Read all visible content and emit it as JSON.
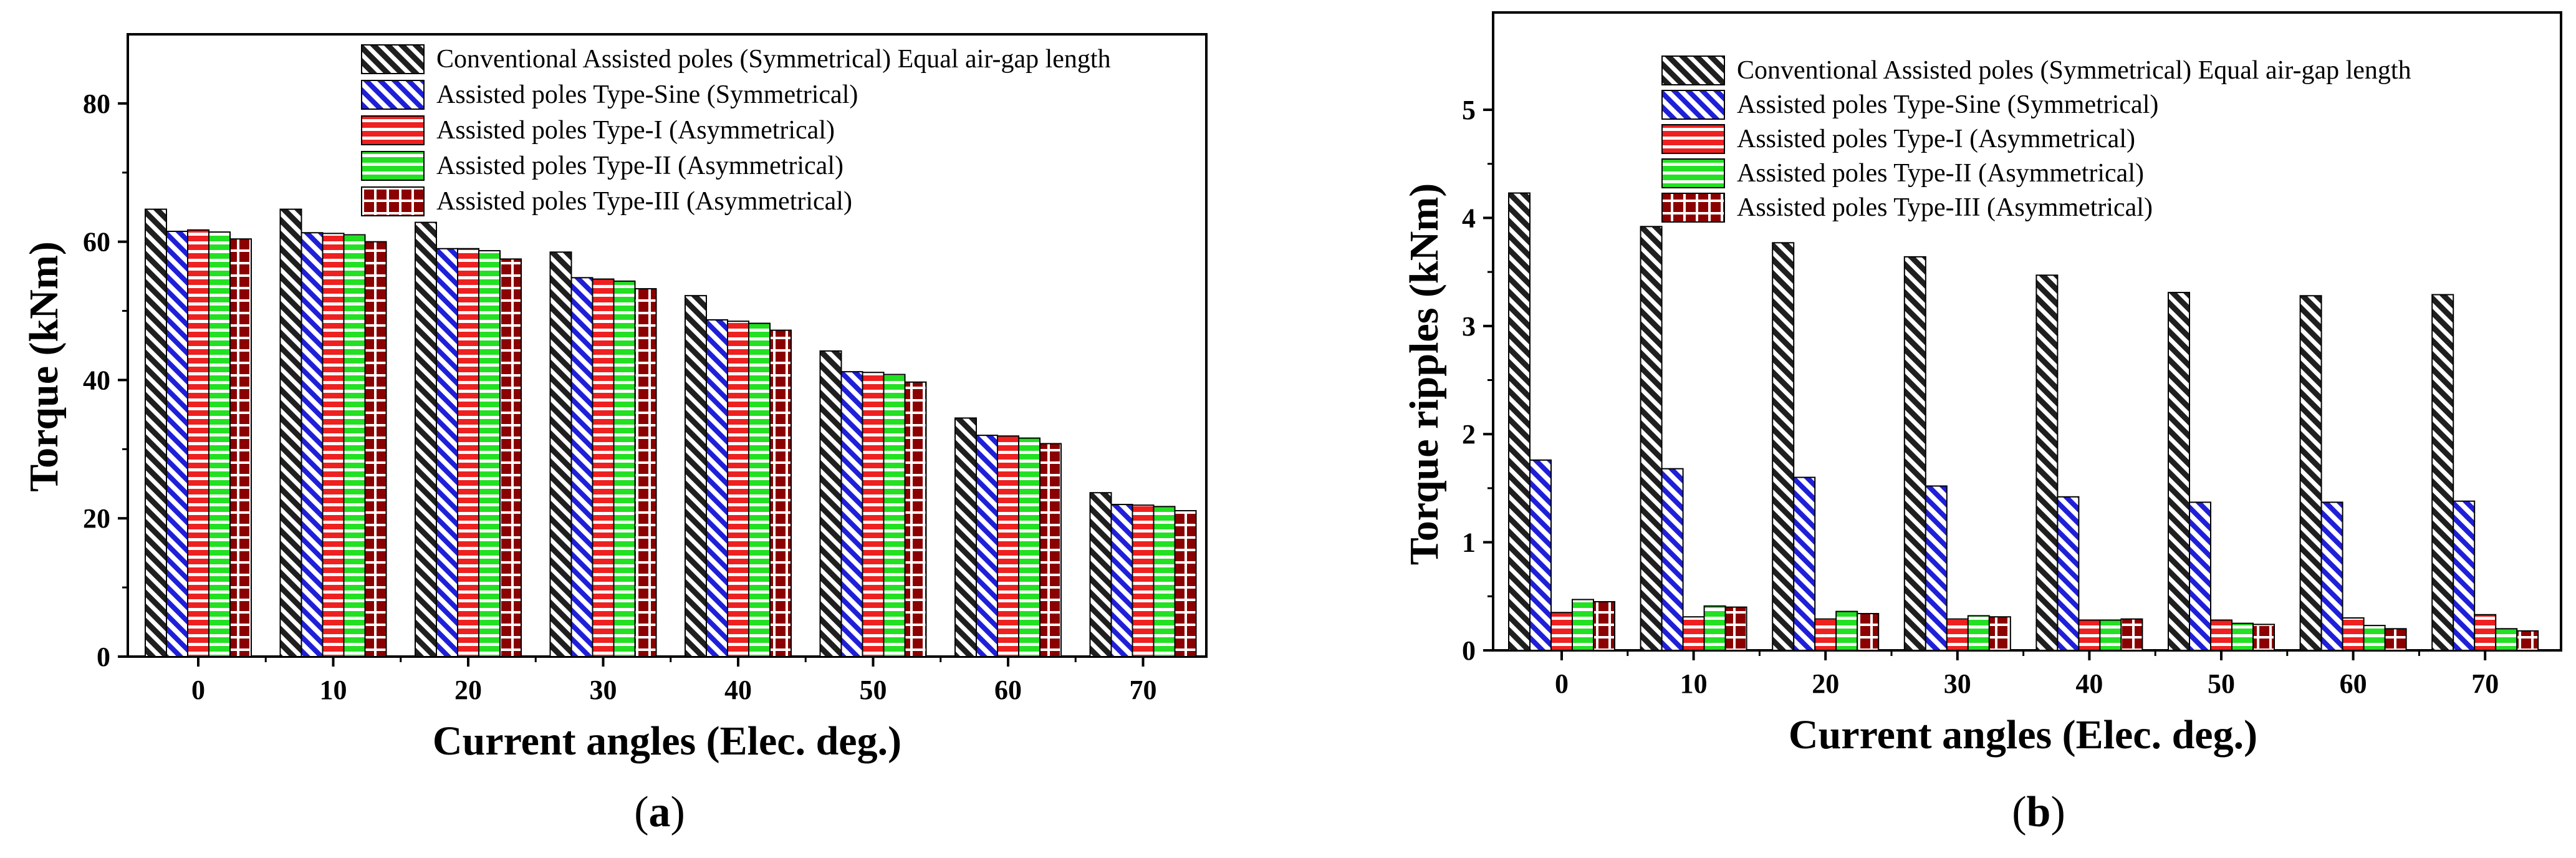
{
  "chart_data": [
    {
      "type": "bar",
      "panel_label": "a",
      "title": "",
      "xlabel": "Current angles (Elec. deg.)",
      "ylabel": "Torque (kNm)",
      "categories": [
        "0",
        "10",
        "20",
        "30",
        "40",
        "50",
        "60",
        "70"
      ],
      "ylim": [
        0,
        90
      ],
      "yticks": [
        0,
        20,
        40,
        60,
        80
      ],
      "legend_position": "top-right",
      "series": [
        {
          "name": "Conventional Assisted poles (Symmetrical) Equal air-gap length",
          "values": [
            64.7,
            64.7,
            62.8,
            58.5,
            52.2,
            44.2,
            34.5,
            23.7
          ]
        },
        {
          "name": "Assisted poles Type-Sine (Symmetrical)",
          "values": [
            61.5,
            61.3,
            59.0,
            54.8,
            48.7,
            41.2,
            32.0,
            22.0
          ]
        },
        {
          "name": "Assisted poles Type-I (Asymmetrical)",
          "values": [
            61.7,
            61.2,
            59.0,
            54.6,
            48.5,
            41.1,
            31.9,
            21.9
          ]
        },
        {
          "name": "Assisted poles Type-II (Asymmetrical)",
          "values": [
            61.4,
            61.0,
            58.7,
            54.3,
            48.2,
            40.8,
            31.6,
            21.7
          ]
        },
        {
          "name": "Assisted poles Type-III (Asymmetrical)",
          "values": [
            60.4,
            60.0,
            57.5,
            53.2,
            47.2,
            39.7,
            30.8,
            21.1
          ]
        }
      ]
    },
    {
      "type": "bar",
      "panel_label": "b",
      "title": "",
      "xlabel": "Current angles (Elec. deg.)",
      "ylabel": "Torque ripples (kNm)",
      "categories": [
        "0",
        "10",
        "20",
        "30",
        "40",
        "50",
        "60",
        "70"
      ],
      "ylim": [
        0,
        5.9
      ],
      "yticks": [
        0,
        1,
        2,
        3,
        4,
        5
      ],
      "legend_position": "top-right",
      "series": [
        {
          "name": "Conventional Assisted poles (Symmetrical) Equal air-gap length",
          "values": [
            4.23,
            3.92,
            3.77,
            3.64,
            3.47,
            3.31,
            3.28,
            3.29
          ]
        },
        {
          "name": "Assisted poles Type-Sine (Symmetrical)",
          "values": [
            1.76,
            1.68,
            1.6,
            1.52,
            1.42,
            1.37,
            1.37,
            1.38
          ]
        },
        {
          "name": "Assisted poles Type-I (Asymmetrical)",
          "values": [
            0.35,
            0.31,
            0.29,
            0.29,
            0.28,
            0.28,
            0.3,
            0.33
          ]
        },
        {
          "name": "Assisted poles Type-II (Asymmetrical)",
          "values": [
            0.47,
            0.41,
            0.36,
            0.32,
            0.28,
            0.25,
            0.23,
            0.2
          ]
        },
        {
          "name": "Assisted poles Type-III (Asymmetrical)",
          "values": [
            0.45,
            0.4,
            0.34,
            0.31,
            0.29,
            0.24,
            0.2,
            0.18
          ]
        }
      ]
    }
  ],
  "styles": {
    "series_colors": [
      "#1f1f1f",
      "#1f1fd8",
      "#ee2020",
      "#22e022",
      "#8b0000"
    ],
    "series_patterns": [
      "diag-dense-dark",
      "diag-blue",
      "horiz-red",
      "horiz-green",
      "grid-darkred"
    ]
  }
}
